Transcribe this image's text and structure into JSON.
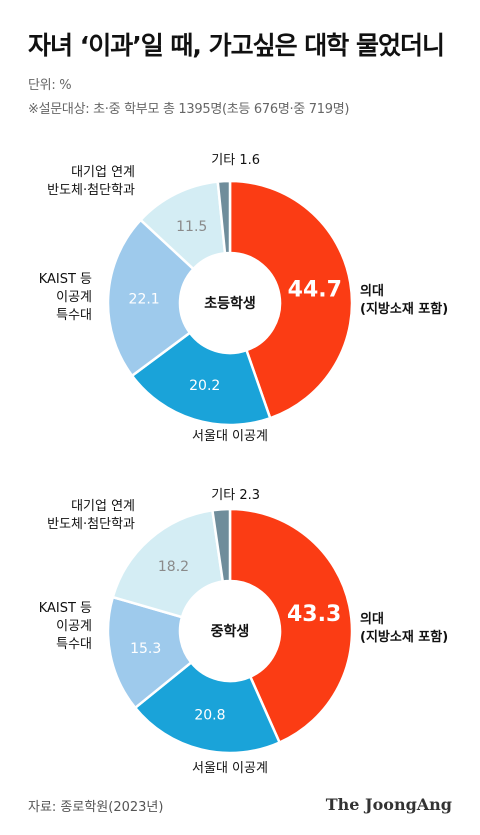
{
  "title": "자녀 ‘이과’일 때, 가고싶은 대학 물었더니",
  "unit": "단위: %",
  "respondents": "※설문대상: 초·중 학부모 총 1395명(초등 676명·중 719명)",
  "source": "자료: 종로학원(2023년)",
  "brand": "The JoongAng",
  "colors": {
    "medical": "#fb3c14",
    "snu_science": "#1aa3d9",
    "kaist": "#9ecaec",
    "corporate": "#d4edf4",
    "other": "#6f8d9b"
  },
  "chart_data": [
    {
      "type": "pie",
      "title": "초등학생",
      "categories": [
        "의대\n(지방소재 포함)",
        "서울대 이공계",
        "KAIST 등\n이공계\n특수대",
        "대기업 연계\n반도체·첨단학과",
        "기타"
      ],
      "values": [
        44.7,
        20.2,
        22.1,
        11.5,
        1.6
      ],
      "value_labels": [
        "44.7",
        "20.2",
        "22.1",
        "11.5",
        "1.6"
      ]
    },
    {
      "type": "pie",
      "title": "중학생",
      "categories": [
        "의대\n(지방소재 포함)",
        "서울대 이공계",
        "KAIST 등\n이공계\n특수대",
        "대기업 연계\n반도체·첨단학과",
        "기타"
      ],
      "values": [
        43.3,
        20.8,
        15.3,
        18.2,
        2.3
      ],
      "value_labels": [
        "43.3",
        "20.8",
        "15.3",
        "18.2",
        "2.3"
      ]
    }
  ]
}
